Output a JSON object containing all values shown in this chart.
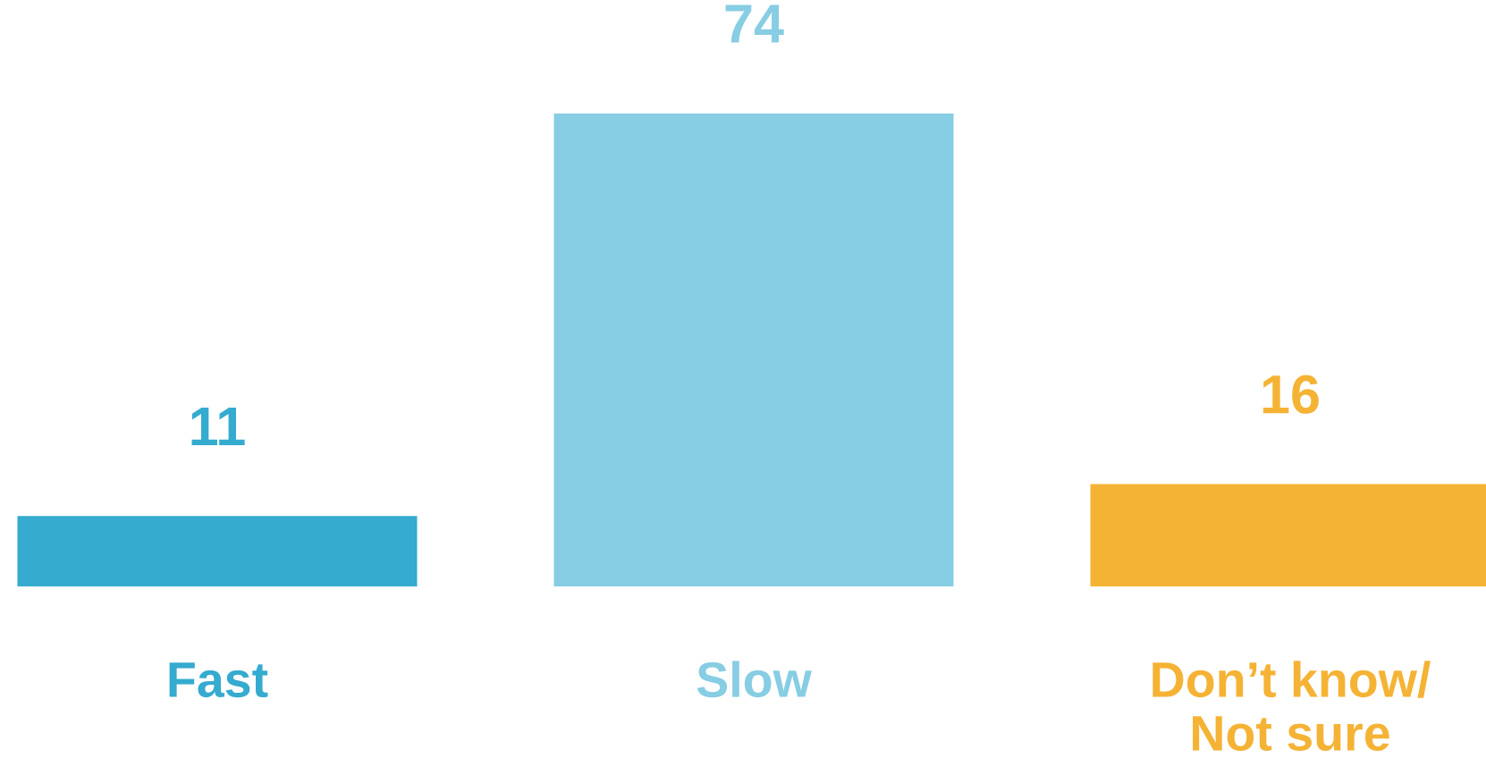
{
  "chart_data": {
    "type": "bar",
    "categories": [
      "Fast",
      "Slow",
      "Don’t know/\nNot sure"
    ],
    "values": [
      11,
      74,
      16
    ],
    "colors": [
      "#35abcf",
      "#87cde3",
      "#f5b335"
    ],
    "data_labels": true,
    "grid": false,
    "legend": false
  }
}
